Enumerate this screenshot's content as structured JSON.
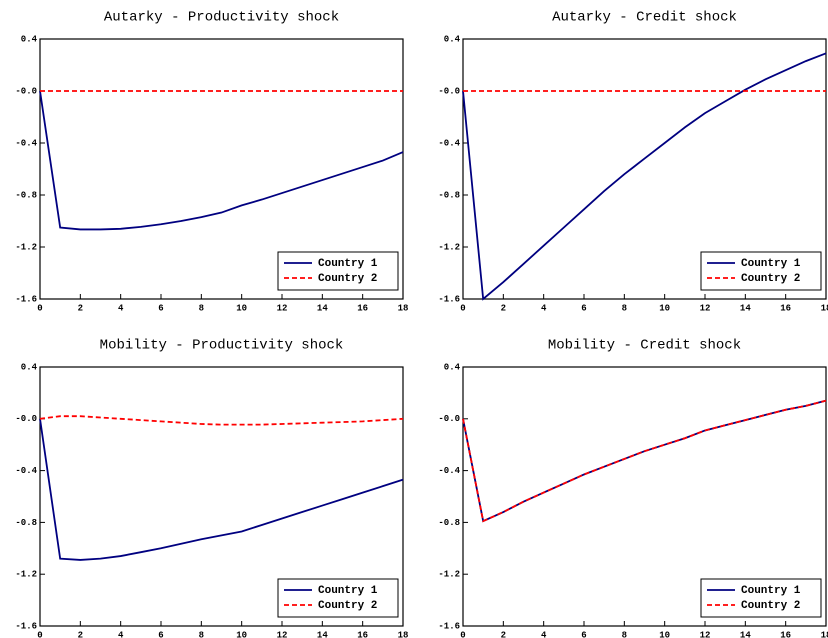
{
  "chart_data": [
    {
      "type": "line",
      "title": "Autarky - Productivity shock",
      "x": [
        0,
        1,
        2,
        3,
        4,
        5,
        6,
        7,
        8,
        9,
        10,
        11,
        12,
        13,
        14,
        15,
        16,
        17,
        18
      ],
      "xlim": [
        0,
        18
      ],
      "xticks": [
        0,
        2,
        4,
        6,
        8,
        10,
        12,
        14,
        16,
        18
      ],
      "ylim": [
        -1.6,
        0.4
      ],
      "yticks": [
        0.4,
        {
          "value": 0,
          "label": "-0.0"
        },
        -0.4,
        -0.8,
        -1.2,
        -1.6
      ],
      "legend": "lower right",
      "series": [
        {
          "name": "Country 1",
          "color": "#000080",
          "linestyle": "solid",
          "values": [
            0,
            -1.05,
            -1.065,
            -1.065,
            -1.06,
            -1.045,
            -1.025,
            -1.0,
            -0.97,
            -0.935,
            -0.88,
            -0.835,
            -0.785,
            -0.735,
            -0.685,
            -0.635,
            -0.585,
            -0.535,
            -0.47
          ]
        },
        {
          "name": "Country 2",
          "color": "#ff0000",
          "linestyle": "dashed",
          "values": [
            0,
            0,
            0,
            0,
            0,
            0,
            0,
            0,
            0,
            0,
            0,
            0,
            0,
            0,
            0,
            0,
            0,
            0,
            0
          ]
        }
      ]
    },
    {
      "type": "line",
      "title": "Autarky - Credit shock",
      "x": [
        0,
        1,
        2,
        3,
        4,
        5,
        6,
        7,
        8,
        9,
        10,
        11,
        12,
        13,
        14,
        15,
        16,
        17,
        18
      ],
      "xlim": [
        0,
        18
      ],
      "xticks": [
        0,
        2,
        4,
        6,
        8,
        10,
        12,
        14,
        16,
        18
      ],
      "ylim": [
        -1.6,
        0.4
      ],
      "yticks": [
        0.4,
        {
          "value": 0,
          "label": "-0.0"
        },
        -0.4,
        -0.8,
        -1.2,
        -1.6
      ],
      "legend": "lower right",
      "series": [
        {
          "name": "Country 1",
          "color": "#000080",
          "linestyle": "solid",
          "values": [
            0,
            -1.6,
            -1.47,
            -1.33,
            -1.19,
            -1.05,
            -0.91,
            -0.77,
            -0.64,
            -0.52,
            -0.4,
            -0.28,
            -0.17,
            -0.08,
            0.01,
            0.09,
            0.16,
            0.23,
            0.29
          ]
        },
        {
          "name": "Country 2",
          "color": "#ff0000",
          "linestyle": "dashed",
          "values": [
            0,
            0,
            0,
            0,
            0,
            0,
            0,
            0,
            0,
            0,
            0,
            0,
            0,
            0,
            0,
            0,
            0,
            0,
            0
          ]
        }
      ]
    },
    {
      "type": "line",
      "title": "Mobility - Productivity shock",
      "x": [
        0,
        1,
        2,
        3,
        4,
        5,
        6,
        7,
        8,
        9,
        10,
        11,
        12,
        13,
        14,
        15,
        16,
        17,
        18
      ],
      "xlim": [
        0,
        18
      ],
      "xticks": [
        0,
        2,
        4,
        6,
        8,
        10,
        12,
        14,
        16,
        18
      ],
      "ylim": [
        -1.6,
        0.4
      ],
      "yticks": [
        0.4,
        {
          "value": 0,
          "label": "-0.0"
        },
        -0.4,
        -0.8,
        -1.2,
        -1.6
      ],
      "legend": "lower right",
      "series": [
        {
          "name": "Country 1",
          "color": "#000080",
          "linestyle": "solid",
          "values": [
            0,
            -1.08,
            -1.09,
            -1.08,
            -1.06,
            -1.03,
            -1.0,
            -0.965,
            -0.93,
            -0.9,
            -0.87,
            -0.82,
            -0.77,
            -0.72,
            -0.67,
            -0.62,
            -0.57,
            -0.52,
            -0.47
          ]
        },
        {
          "name": "Country 2",
          "color": "#ff0000",
          "linestyle": "dashed",
          "values": [
            0,
            0.02,
            0.02,
            0.01,
            0,
            -0.01,
            -0.02,
            -0.03,
            -0.04,
            -0.045,
            -0.045,
            -0.045,
            -0.04,
            -0.035,
            -0.03,
            -0.025,
            -0.02,
            -0.01,
            0
          ]
        }
      ]
    },
    {
      "type": "line",
      "title": "Mobility - Credit shock",
      "x": [
        0,
        1,
        2,
        3,
        4,
        5,
        6,
        7,
        8,
        9,
        10,
        11,
        12,
        13,
        14,
        15,
        16,
        17,
        18
      ],
      "xlim": [
        0,
        18
      ],
      "xticks": [
        0,
        2,
        4,
        6,
        8,
        10,
        12,
        14,
        16,
        18
      ],
      "ylim": [
        -1.6,
        0.4
      ],
      "yticks": [
        0.4,
        {
          "value": 0,
          "label": "-0.0"
        },
        -0.4,
        -0.8,
        -1.2,
        -1.6
      ],
      "legend": "lower right",
      "series": [
        {
          "name": "Country 1",
          "color": "#000080",
          "linestyle": "solid",
          "values": [
            0,
            -0.79,
            -0.72,
            -0.64,
            -0.57,
            -0.5,
            -0.43,
            -0.37,
            -0.31,
            -0.25,
            -0.2,
            -0.15,
            -0.09,
            -0.05,
            -0.01,
            0.03,
            0.07,
            0.1,
            0.14
          ]
        },
        {
          "name": "Country 2",
          "color": "#ff0000",
          "linestyle": "dashed",
          "values": [
            0,
            -0.79,
            -0.72,
            -0.64,
            -0.57,
            -0.5,
            -0.43,
            -0.37,
            -0.31,
            -0.25,
            -0.2,
            -0.15,
            -0.09,
            -0.05,
            -0.01,
            0.03,
            0.07,
            0.1,
            0.14
          ]
        }
      ]
    }
  ]
}
